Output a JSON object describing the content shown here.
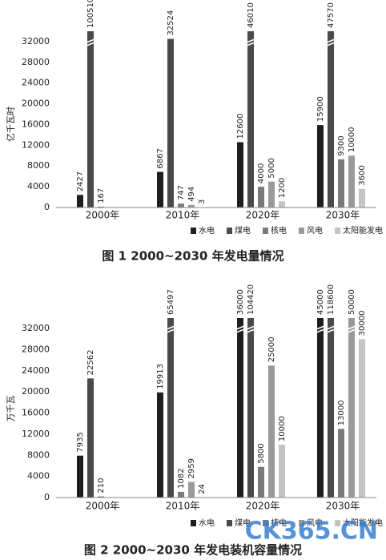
{
  "chart_data": [
    {
      "type": "bar",
      "title": "图 1   2000~2030 年发电量情况",
      "y_label": "亿千瓦时",
      "categories": [
        "2000年",
        "2010年",
        "2020年",
        "2030年"
      ],
      "series": [
        {
          "name": "水电",
          "color": "#1e1e1e",
          "values": [
            2427,
            6867,
            12600,
            15900
          ]
        },
        {
          "name": "煤电",
          "color": "#4a4a4a",
          "values": [
            100510,
            32524,
            46010,
            47570
          ]
        },
        {
          "name": "核电",
          "color": "#7a7a7a",
          "values": [
            167,
            747,
            4000,
            9300
          ]
        },
        {
          "name": "风电",
          "color": "#9a9a9a",
          "values": [
            null,
            494,
            5000,
            10000
          ]
        },
        {
          "name": "太阳能发电",
          "color": "#c4c4c4",
          "values": [
            null,
            3,
            1200,
            3600
          ]
        }
      ],
      "ylim": [
        0,
        34000
      ],
      "yticks": [
        0,
        4000,
        8000,
        12000,
        16000,
        20000,
        24000,
        28000,
        32000
      ],
      "legend": "bottom-right",
      "axis_break": true
    },
    {
      "type": "bar",
      "title": "图 2   2000~2030 年发电装机容量情况",
      "y_label": "万千瓦",
      "categories": [
        "2000年",
        "2010年",
        "2020年",
        "2030年"
      ],
      "series": [
        {
          "name": "水电",
          "color": "#1e1e1e",
          "values": [
            7935,
            19913,
            36000,
            45000
          ]
        },
        {
          "name": "煤电",
          "color": "#4a4a4a",
          "values": [
            22562,
            65497,
            104420,
            118600
          ]
        },
        {
          "name": "核电",
          "color": "#7a7a7a",
          "values": [
            210,
            1082,
            5800,
            13000
          ]
        },
        {
          "name": "风电",
          "color": "#9a9a9a",
          "values": [
            null,
            2959,
            25000,
            50000
          ]
        },
        {
          "name": "太阳能发电",
          "color": "#c4c4c4",
          "values": [
            null,
            24,
            10000,
            30000
          ]
        }
      ],
      "ylim": [
        0,
        34000
      ],
      "yticks": [
        0,
        4000,
        8000,
        12000,
        16000,
        20000,
        24000,
        28000,
        32000
      ],
      "legend": "bottom-right",
      "axis_break": true,
      "watermark": "CK365.CN"
    }
  ]
}
